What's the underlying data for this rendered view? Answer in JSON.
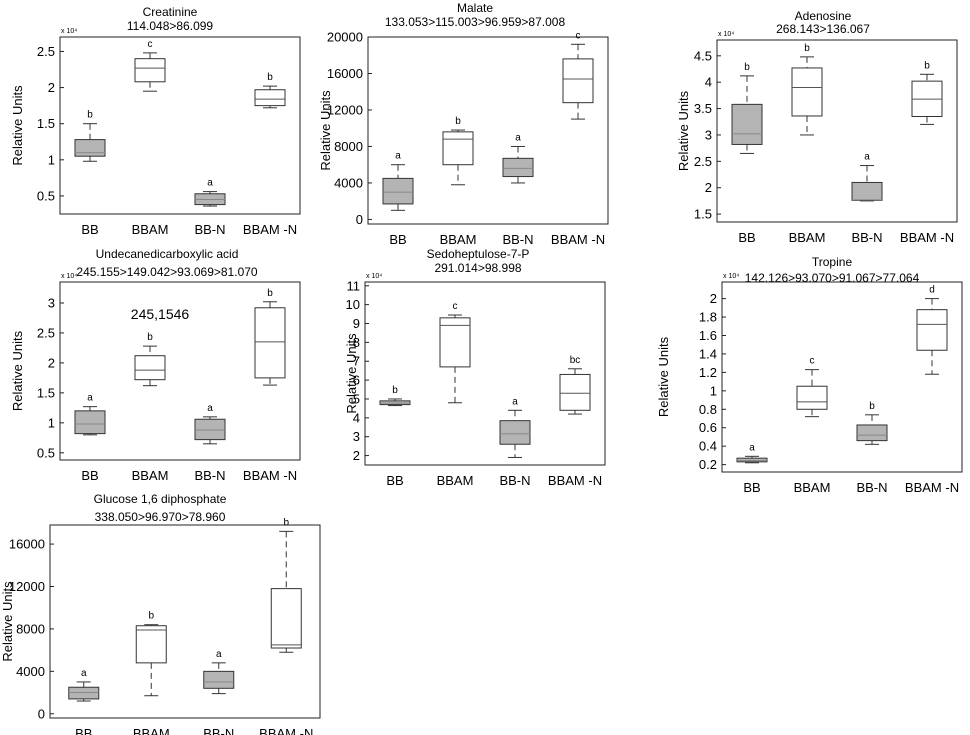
{
  "colors": {
    "filled_box": "#b4b4b4",
    "open_box": "#ffffff",
    "stroke": "#333333",
    "median": "#555555"
  },
  "chart_data": [
    {
      "type": "boxplot",
      "title": "Creatinine",
      "subtitle": "114.048>86.099",
      "ylabel": "Relative Units",
      "exponent_label": "x 10⁴",
      "yticks": [
        0.5,
        1,
        1.5,
        2,
        2.5
      ],
      "ylim": [
        0.25,
        2.7
      ],
      "categories": [
        "BB",
        "BBAM",
        "BB-N",
        "BBAM -N"
      ],
      "series": [
        {
          "category": "BB",
          "min": 0.98,
          "q1": 1.05,
          "median": 1.1,
          "q3": 1.28,
          "max": 1.5,
          "letter": "b",
          "filled": true
        },
        {
          "category": "BBAM",
          "min": 1.95,
          "q1": 2.08,
          "median": 2.27,
          "q3": 2.4,
          "max": 2.48,
          "letter": "c",
          "filled": false
        },
        {
          "category": "BB-N",
          "min": 0.36,
          "q1": 0.38,
          "median": 0.45,
          "q3": 0.53,
          "max": 0.56,
          "letter": "a",
          "filled": true
        },
        {
          "category": "BBAM -N",
          "min": 1.72,
          "q1": 1.75,
          "median": 1.84,
          "q3": 1.97,
          "max": 2.02,
          "letter": "b",
          "filled": false
        }
      ]
    },
    {
      "type": "boxplot",
      "title": "Malate",
      "subtitle": "133.053>115.003>96.959>87.008",
      "ylabel": "Relative Units",
      "exponent_label": "",
      "yticks": [
        0,
        4000,
        8000,
        12000,
        16000,
        20000
      ],
      "ylim": [
        -500,
        20000
      ],
      "categories": [
        "BB",
        "BBAM",
        "BB-N",
        "BBAM -N"
      ],
      "series": [
        {
          "category": "BB",
          "min": 1000,
          "q1": 1700,
          "median": 3000,
          "q3": 4500,
          "max": 6000,
          "letter": "a",
          "filled": true
        },
        {
          "category": "BBAM",
          "min": 3800,
          "q1": 6000,
          "median": 8800,
          "q3": 9600,
          "max": 9800,
          "letter": "b",
          "filled": false
        },
        {
          "category": "BB-N",
          "min": 4000,
          "q1": 4700,
          "median": 5600,
          "q3": 6700,
          "max": 8000,
          "letter": "a",
          "filled": true
        },
        {
          "category": "BBAM -N",
          "min": 11000,
          "q1": 12800,
          "median": 15400,
          "q3": 17600,
          "max": 19200,
          "letter": "c",
          "filled": false
        }
      ]
    },
    {
      "type": "boxplot",
      "title": "Adenosine",
      "subtitle": "268.143>136.067",
      "ylabel": "Relative Units",
      "exponent_label": "x 10⁴",
      "yticks": [
        1.5,
        2,
        2.5,
        3,
        3.5,
        4,
        4.5
      ],
      "ylim": [
        1.35,
        4.8
      ],
      "categories": [
        "BB",
        "BBAM",
        "BB-N",
        "BBAM -N"
      ],
      "series": [
        {
          "category": "BB",
          "min": 2.65,
          "q1": 2.82,
          "median": 3.02,
          "q3": 3.58,
          "max": 4.12,
          "letter": "b",
          "filled": true
        },
        {
          "category": "BBAM",
          "min": 3.0,
          "q1": 3.36,
          "median": 3.9,
          "q3": 4.27,
          "max": 4.48,
          "letter": "b",
          "filled": false
        },
        {
          "category": "BB-N",
          "min": 1.75,
          "q1": 1.76,
          "median": 1.77,
          "q3": 2.1,
          "max": 2.42,
          "letter": "a",
          "filled": true
        },
        {
          "category": "BBAM -N",
          "min": 3.2,
          "q1": 3.35,
          "median": 3.68,
          "q3": 4.02,
          "max": 4.15,
          "letter": "b",
          "filled": false
        }
      ]
    },
    {
      "type": "boxplot",
      "title": "Undecanedicarboxylic acid",
      "subtitle": "245.155>149.042>93.069>81.070",
      "ylabel": "Relative Units",
      "exponent_label": "x 10⁴",
      "annotation": "245,1546",
      "yticks": [
        0.5,
        1,
        1.5,
        2,
        2.5,
        3
      ],
      "ylim": [
        0.38,
        3.35
      ],
      "categories": [
        "BB",
        "BBAM",
        "BB-N",
        "BBAM -N"
      ],
      "series": [
        {
          "category": "BB",
          "min": 0.8,
          "q1": 0.82,
          "median": 0.98,
          "q3": 1.2,
          "max": 1.27,
          "letter": "a",
          "filled": true
        },
        {
          "category": "BBAM",
          "min": 1.62,
          "q1": 1.72,
          "median": 1.88,
          "q3": 2.12,
          "max": 2.28,
          "letter": "b",
          "filled": false
        },
        {
          "category": "BB-N",
          "min": 0.65,
          "q1": 0.72,
          "median": 0.88,
          "q3": 1.06,
          "max": 1.1,
          "letter": "a",
          "filled": true
        },
        {
          "category": "BBAM -N",
          "min": 1.63,
          "q1": 1.75,
          "median": 2.35,
          "q3": 2.92,
          "max": 3.02,
          "letter": "b",
          "filled": false
        }
      ]
    },
    {
      "type": "boxplot",
      "title": "Sedoheptulose-7-P",
      "subtitle": "291.014>98.998",
      "ylabel": "Relative Units",
      "exponent_label": "x 10⁴",
      "yticks": [
        2,
        3,
        4,
        5,
        6,
        7,
        8,
        9,
        10,
        11
      ],
      "ylim": [
        1.5,
        11.2
      ],
      "categories": [
        "BB",
        "BBAM",
        "BB-N",
        "BBAM -N"
      ],
      "series": [
        {
          "category": "BB",
          "min": 4.65,
          "q1": 4.7,
          "median": 4.78,
          "q3": 4.9,
          "max": 5.0,
          "letter": "b",
          "filled": true
        },
        {
          "category": "BBAM",
          "min": 4.8,
          "q1": 6.7,
          "median": 8.9,
          "q3": 9.3,
          "max": 9.45,
          "letter": "c",
          "filled": false
        },
        {
          "category": "BB-N",
          "min": 1.9,
          "q1": 2.6,
          "median": 3.15,
          "q3": 3.85,
          "max": 4.4,
          "letter": "a",
          "filled": true
        },
        {
          "category": "BBAM -N",
          "min": 4.2,
          "q1": 4.4,
          "median": 5.3,
          "q3": 6.3,
          "max": 6.6,
          "letter": "bc",
          "filled": false
        }
      ]
    },
    {
      "type": "boxplot",
      "title": "Tropine",
      "subtitle": "142.126>93.070>91.067>77.064",
      "ylabel": "Relative Units",
      "exponent_label": "x 10⁴",
      "yticks": [
        0.2,
        0.4,
        0.6,
        0.8,
        1,
        1.2,
        1.4,
        1.6,
        1.8,
        2
      ],
      "ylim": [
        0.12,
        2.18
      ],
      "categories": [
        "BB",
        "BBAM",
        "BB-N",
        "BBAM -N"
      ],
      "series": [
        {
          "category": "BB",
          "min": 0.22,
          "q1": 0.23,
          "median": 0.245,
          "q3": 0.27,
          "max": 0.29,
          "letter": "a",
          "filled": true
        },
        {
          "category": "BBAM",
          "min": 0.72,
          "q1": 0.8,
          "median": 0.88,
          "q3": 1.05,
          "max": 1.23,
          "letter": "c",
          "filled": false
        },
        {
          "category": "BB-N",
          "min": 0.42,
          "q1": 0.46,
          "median": 0.52,
          "q3": 0.63,
          "max": 0.74,
          "letter": "b",
          "filled": true
        },
        {
          "category": "BBAM -N",
          "min": 1.18,
          "q1": 1.44,
          "median": 1.72,
          "q3": 1.88,
          "max": 2.0,
          "letter": "d",
          "filled": false
        }
      ]
    },
    {
      "type": "boxplot",
      "title": "Glucose 1,6 diphosphate",
      "subtitle": "338.050>96.970>78.960",
      "ylabel": "Relative Units",
      "exponent_label": "",
      "yticks": [
        0,
        4000,
        8000,
        12000,
        16000
      ],
      "ylim": [
        -400,
        17800
      ],
      "categories": [
        "BB",
        "BBAM",
        "BB-N",
        "BBAM -N"
      ],
      "series": [
        {
          "category": "BB",
          "min": 1200,
          "q1": 1400,
          "median": 2000,
          "q3": 2500,
          "max": 3000,
          "letter": "a",
          "filled": true
        },
        {
          "category": "BBAM",
          "min": 1700,
          "q1": 4800,
          "median": 7900,
          "q3": 8300,
          "max": 8400,
          "letter": "b",
          "filled": false
        },
        {
          "category": "BB-N",
          "min": 1900,
          "q1": 2400,
          "median": 3000,
          "q3": 4000,
          "max": 4800,
          "letter": "a",
          "filled": true
        },
        {
          "category": "BBAM -N",
          "min": 5800,
          "q1": 6200,
          "median": 6500,
          "q3": 11800,
          "max": 17200,
          "letter": "b",
          "filled": false
        }
      ]
    }
  ]
}
